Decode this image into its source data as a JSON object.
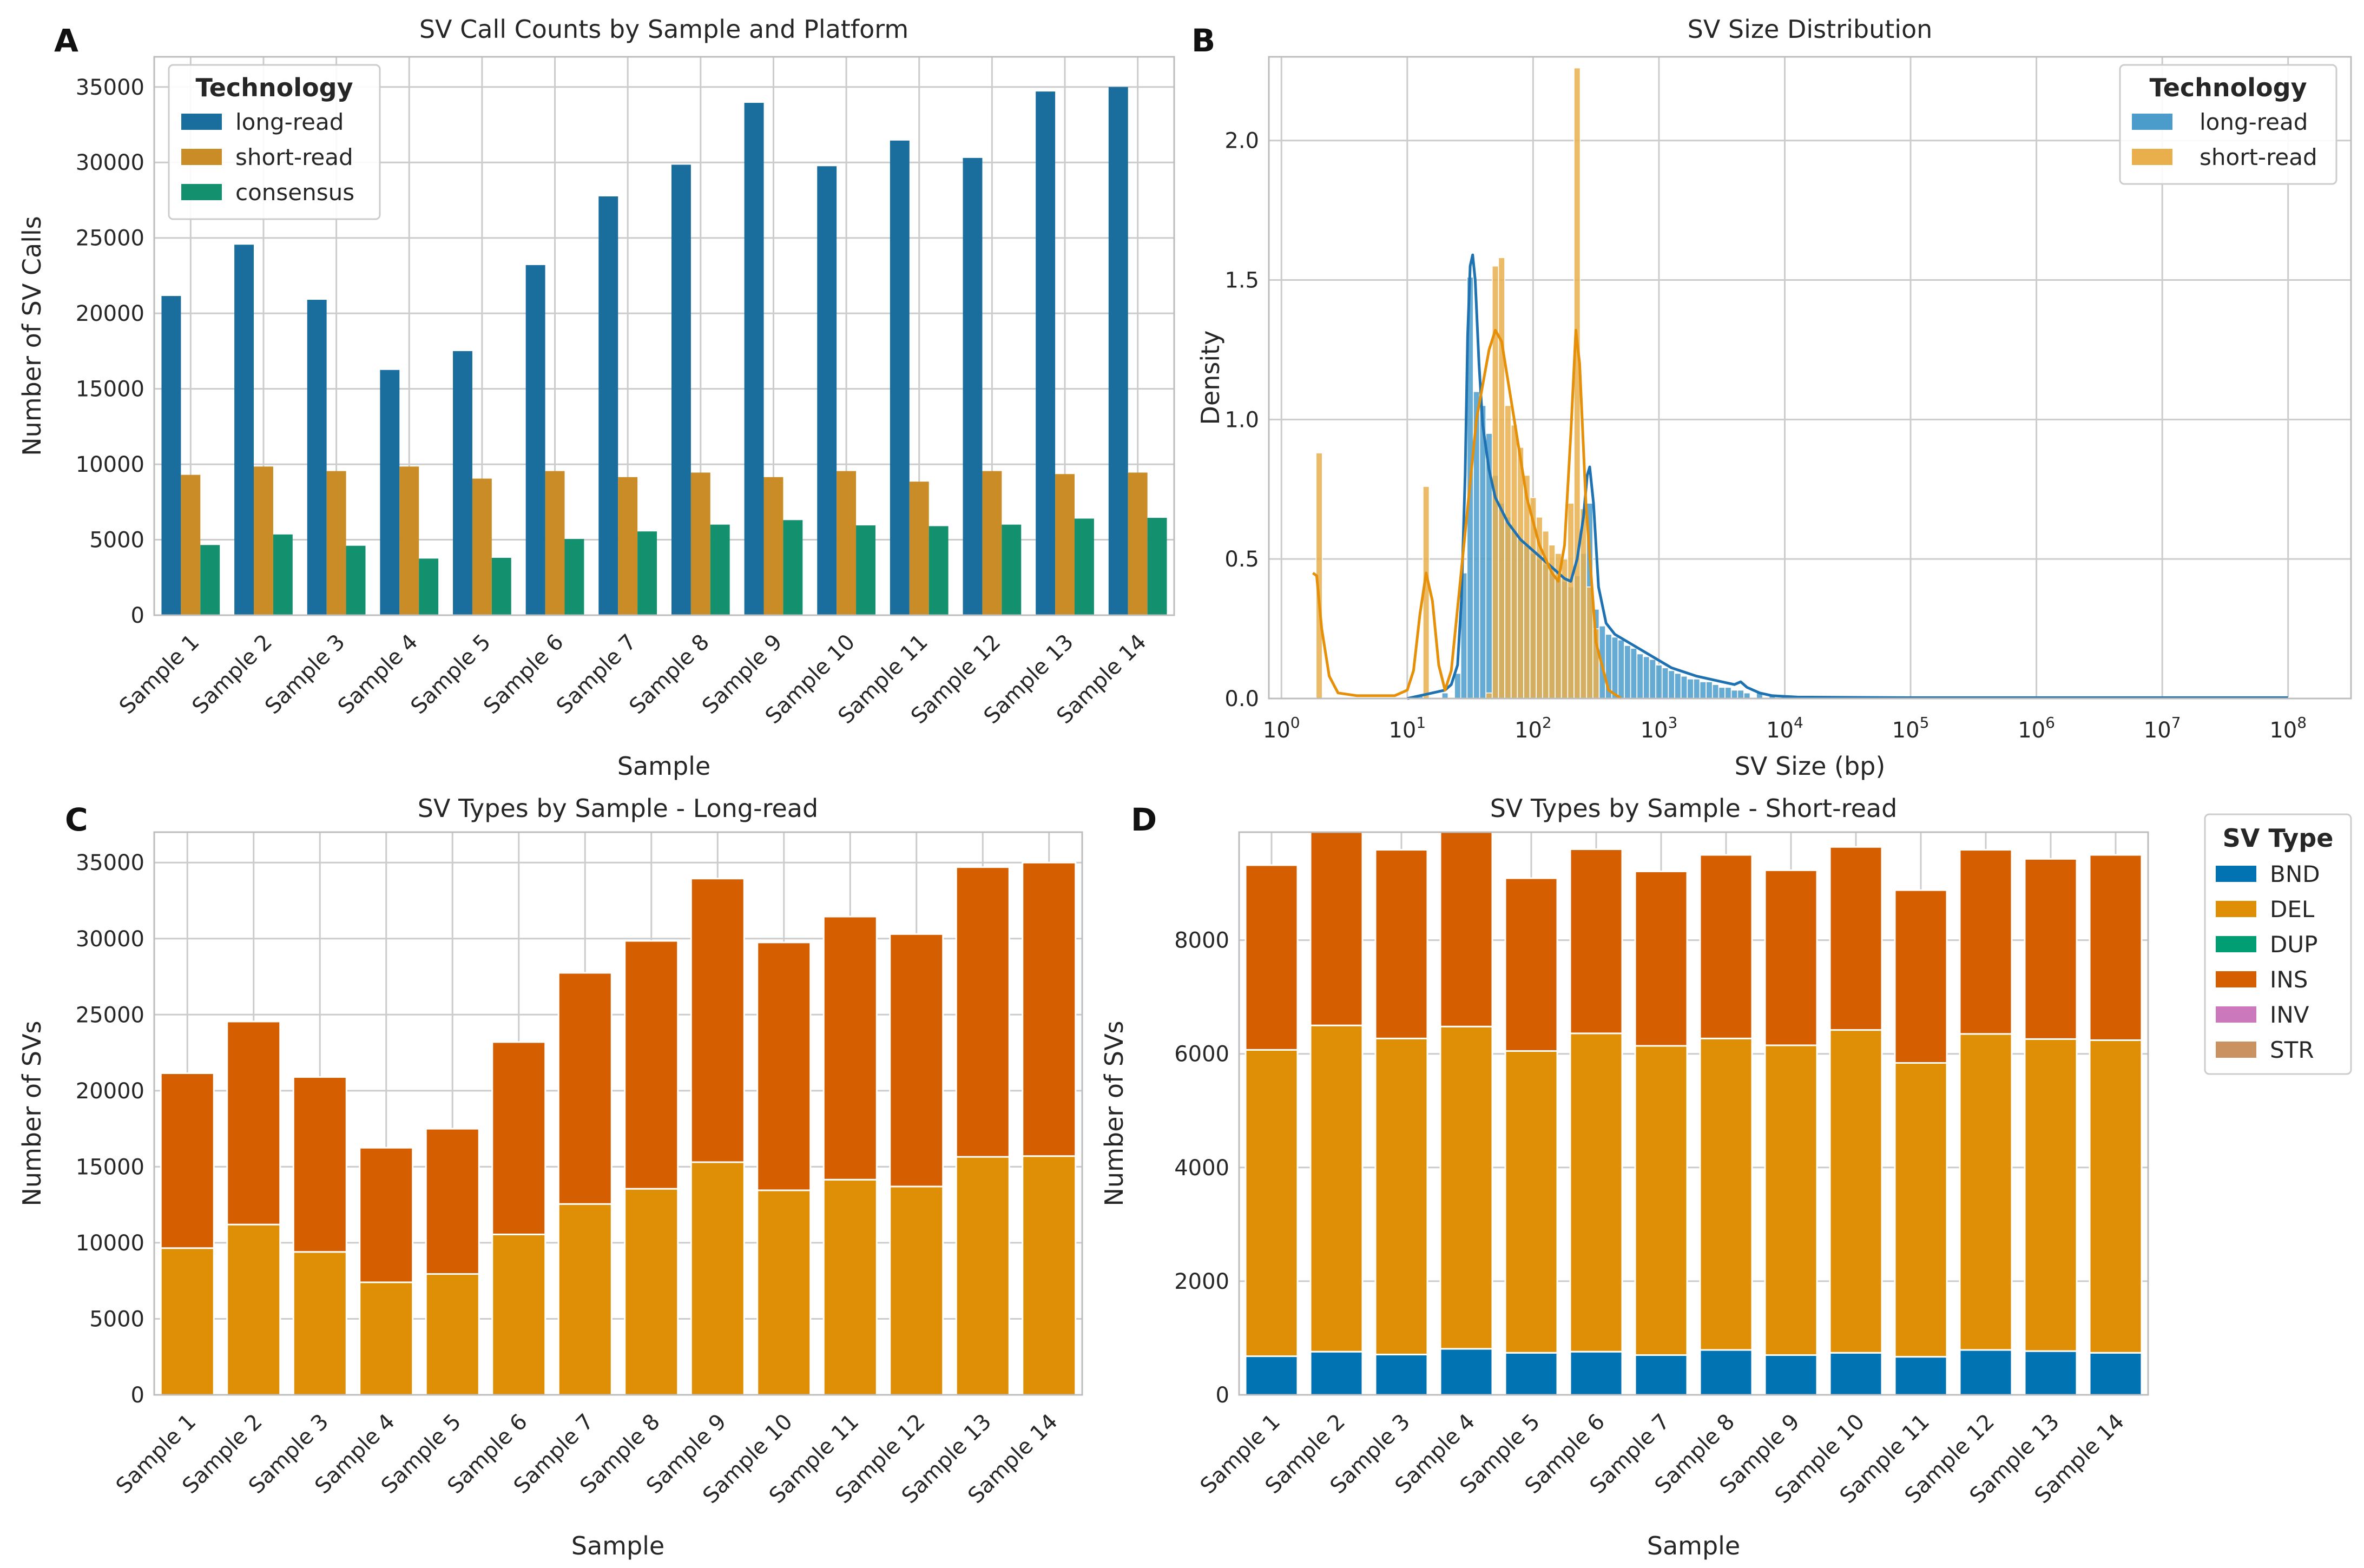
{
  "samples": [
    "Sample 1",
    "Sample 2",
    "Sample 3",
    "Sample 4",
    "Sample 5",
    "Sample 6",
    "Sample 7",
    "Sample 8",
    "Sample 9",
    "Sample 10",
    "Sample 11",
    "Sample 12",
    "Sample 13",
    "Sample 14"
  ],
  "colors": {
    "long_read": "#1a6e9e",
    "short_read": "#c98c26",
    "consensus": "#13906e",
    "hist_long": "#4b9ccb",
    "hist_short": "#e8af4c",
    "kde_long": "#1f72b1",
    "kde_short": "#e59008",
    "BND": "#0173b2",
    "DEL": "#de8f05",
    "DUP": "#029e73",
    "INS": "#d55e00",
    "INV": "#cc78bc",
    "STR": "#ca9161"
  },
  "chart_data": [
    {
      "panel": "A",
      "type": "bar",
      "title": "SV Call Counts by Sample and Platform",
      "xlabel": "Sample",
      "ylabel": "Number of SV Calls",
      "ylim": [
        0,
        37000
      ],
      "yticks": [
        0,
        5000,
        10000,
        15000,
        20000,
        25000,
        30000,
        35000
      ],
      "legend": {
        "title": "Technology",
        "position": "top-left"
      },
      "series": [
        {
          "name": "long-read",
          "values": [
            21150,
            24550,
            20900,
            16250,
            17500,
            23200,
            27750,
            29850,
            33950,
            29750,
            31450,
            30300,
            34700,
            35000
          ]
        },
        {
          "name": "short-read",
          "values": [
            9300,
            9850,
            9550,
            9850,
            9050,
            9550,
            9150,
            9450,
            9150,
            9550,
            8850,
            9550,
            9350,
            9450
          ]
        },
        {
          "name": "consensus",
          "values": [
            4650,
            5350,
            4600,
            3750,
            3800,
            5050,
            5550,
            6000,
            6300,
            5950,
            5900,
            6000,
            6400,
            6450
          ]
        }
      ]
    },
    {
      "panel": "B",
      "type": "histogram",
      "title": "SV Size Distribution",
      "xlabel": "SV Size (bp)",
      "ylabel": "Density",
      "xscale": "log10",
      "xlim_log10": [
        -0.1,
        8.5
      ],
      "ylim": [
        0,
        2.3
      ],
      "yticks": [
        0.0,
        0.5,
        1.0,
        1.5,
        2.0
      ],
      "ytick_labels": [
        "0.0",
        "0.5",
        "1.0",
        "1.5",
        "2.0"
      ],
      "xticks": [
        {
          "base": "10",
          "exp": "0",
          "log10": 0
        },
        {
          "base": "10",
          "exp": "1",
          "log10": 1
        },
        {
          "base": "10",
          "exp": "2",
          "log10": 2
        },
        {
          "base": "10",
          "exp": "3",
          "log10": 3
        },
        {
          "base": "10",
          "exp": "4",
          "log10": 4
        },
        {
          "base": "10",
          "exp": "5",
          "log10": 5
        },
        {
          "base": "10",
          "exp": "6",
          "log10": 6
        },
        {
          "base": "10",
          "exp": "7",
          "log10": 7
        },
        {
          "base": "10",
          "exp": "8",
          "log10": 8
        }
      ],
      "legend": {
        "title": "Technology",
        "position": "top-right",
        "entries": [
          "long-read",
          "short-read"
        ]
      },
      "series": [
        {
          "name": "long-read",
          "bins_log10": [
            [
              1.1,
              0.01
            ],
            [
              1.3,
              0.02
            ],
            [
              1.4,
              0.09
            ],
            [
              1.45,
              0.45
            ],
            [
              1.5,
              1.51
            ],
            [
              1.55,
              1.1
            ],
            [
              1.6,
              1.05
            ],
            [
              1.65,
              0.95
            ],
            [
              1.7,
              0.8
            ],
            [
              1.75,
              0.7
            ],
            [
              1.8,
              0.65
            ],
            [
              1.85,
              0.6
            ],
            [
              1.9,
              0.57
            ],
            [
              1.95,
              0.55
            ],
            [
              2.0,
              0.52
            ],
            [
              2.05,
              0.5
            ],
            [
              2.1,
              0.48
            ],
            [
              2.15,
              0.45
            ],
            [
              2.2,
              0.43
            ],
            [
              2.25,
              0.42
            ],
            [
              2.3,
              0.4
            ],
            [
              2.35,
              0.44
            ],
            [
              2.4,
              0.52
            ],
            [
              2.45,
              0.7
            ],
            [
              2.5,
              0.32
            ],
            [
              2.55,
              0.26
            ],
            [
              2.6,
              0.23
            ],
            [
              2.65,
              0.22
            ],
            [
              2.7,
              0.21
            ],
            [
              2.75,
              0.19
            ],
            [
              2.8,
              0.18
            ],
            [
              2.85,
              0.16
            ],
            [
              2.9,
              0.15
            ],
            [
              2.95,
              0.14
            ],
            [
              3.0,
              0.12
            ],
            [
              3.05,
              0.11
            ],
            [
              3.1,
              0.1
            ],
            [
              3.15,
              0.09
            ],
            [
              3.2,
              0.08
            ],
            [
              3.25,
              0.07
            ],
            [
              3.3,
              0.07
            ],
            [
              3.35,
              0.06
            ],
            [
              3.4,
              0.06
            ],
            [
              3.45,
              0.05
            ],
            [
              3.5,
              0.04
            ],
            [
              3.55,
              0.04
            ],
            [
              3.6,
              0.03
            ],
            [
              3.65,
              0.03
            ],
            [
              3.7,
              0.02
            ],
            [
              3.8,
              0.02
            ],
            [
              3.9,
              0.01
            ],
            [
              4.0,
              0.01
            ],
            [
              4.3,
              0.005
            ],
            [
              5.0,
              0.004
            ],
            [
              6.0,
              0.004
            ],
            [
              7.0,
              0.004
            ],
            [
              8.0,
              0.004
            ]
          ],
          "kde_log10": [
            [
              1.0,
              0.0
            ],
            [
              1.1,
              0.01
            ],
            [
              1.2,
              0.02
            ],
            [
              1.3,
              0.03
            ],
            [
              1.35,
              0.05
            ],
            [
              1.4,
              0.12
            ],
            [
              1.43,
              0.35
            ],
            [
              1.46,
              0.8
            ],
            [
              1.48,
              1.3
            ],
            [
              1.5,
              1.55
            ],
            [
              1.52,
              1.59
            ],
            [
              1.54,
              1.5
            ],
            [
              1.57,
              1.2
            ],
            [
              1.6,
              0.98
            ],
            [
              1.65,
              0.82
            ],
            [
              1.7,
              0.72
            ],
            [
              1.8,
              0.63
            ],
            [
              1.9,
              0.57
            ],
            [
              2.0,
              0.53
            ],
            [
              2.1,
              0.49
            ],
            [
              2.2,
              0.45
            ],
            [
              2.25,
              0.43
            ],
            [
              2.3,
              0.42
            ],
            [
              2.35,
              0.5
            ],
            [
              2.4,
              0.65
            ],
            [
              2.43,
              0.8
            ],
            [
              2.45,
              0.83
            ],
            [
              2.48,
              0.7
            ],
            [
              2.52,
              0.4
            ],
            [
              2.58,
              0.27
            ],
            [
              2.65,
              0.23
            ],
            [
              2.8,
              0.19
            ],
            [
              2.95,
              0.15
            ],
            [
              3.1,
              0.11
            ],
            [
              3.3,
              0.08
            ],
            [
              3.5,
              0.06
            ],
            [
              3.6,
              0.05
            ],
            [
              3.65,
              0.06
            ],
            [
              3.7,
              0.04
            ],
            [
              3.8,
              0.02
            ],
            [
              3.9,
              0.01
            ],
            [
              4.1,
              0.005
            ],
            [
              5.0,
              0.003
            ],
            [
              8.0,
              0.003
            ]
          ]
        },
        {
          "name": "short-read",
          "bins_log10": [
            [
              0.3,
              0.88
            ],
            [
              1.15,
              0.76
            ],
            [
              1.65,
              0.02
            ],
            [
              1.7,
              1.55
            ],
            [
              1.75,
              1.58
            ],
            [
              1.8,
              1.05
            ],
            [
              1.85,
              0.98
            ],
            [
              1.9,
              0.9
            ],
            [
              1.95,
              0.8
            ],
            [
              2.0,
              0.72
            ],
            [
              2.05,
              0.65
            ],
            [
              2.1,
              0.6
            ],
            [
              2.15,
              0.55
            ],
            [
              2.2,
              0.52
            ],
            [
              2.25,
              0.5
            ],
            [
              2.3,
              0.7
            ],
            [
              2.35,
              2.26
            ],
            [
              2.4,
              0.68
            ],
            [
              2.45,
              0.4
            ],
            [
              2.5,
              0.25
            ]
          ],
          "kde_log10": [
            [
              0.25,
              0.45
            ],
            [
              0.28,
              0.44
            ],
            [
              0.32,
              0.25
            ],
            [
              0.38,
              0.08
            ],
            [
              0.45,
              0.02
            ],
            [
              0.6,
              0.01
            ],
            [
              0.9,
              0.01
            ],
            [
              1.0,
              0.03
            ],
            [
              1.05,
              0.1
            ],
            [
              1.1,
              0.3
            ],
            [
              1.15,
              0.45
            ],
            [
              1.2,
              0.35
            ],
            [
              1.25,
              0.12
            ],
            [
              1.3,
              0.03
            ],
            [
              1.35,
              0.1
            ],
            [
              1.45,
              0.55
            ],
            [
              1.55,
              1.0
            ],
            [
              1.65,
              1.25
            ],
            [
              1.7,
              1.32
            ],
            [
              1.75,
              1.28
            ],
            [
              1.85,
              1.0
            ],
            [
              1.95,
              0.72
            ],
            [
              2.05,
              0.55
            ],
            [
              2.15,
              0.45
            ],
            [
              2.2,
              0.42
            ],
            [
              2.25,
              0.55
            ],
            [
              2.3,
              0.95
            ],
            [
              2.34,
              1.32
            ],
            [
              2.37,
              1.2
            ],
            [
              2.42,
              0.7
            ],
            [
              2.5,
              0.2
            ],
            [
              2.6,
              0.03
            ],
            [
              2.7,
              0.0
            ]
          ]
        }
      ]
    },
    {
      "panel": "C",
      "type": "stacked_bar",
      "title": "SV Types by Sample - Long-read",
      "xlabel": "Sample",
      "ylabel": "Number of SVs",
      "ylim": [
        0,
        37000
      ],
      "yticks": [
        0,
        5000,
        10000,
        15000,
        20000,
        25000,
        30000,
        35000
      ],
      "series": [
        {
          "name": "DEL",
          "values": [
            9650,
            11200,
            9400,
            7400,
            7950,
            10550,
            12550,
            13550,
            15300,
            13450,
            14150,
            13700,
            15650,
            15700
          ]
        },
        {
          "name": "INS",
          "values": [
            11500,
            13350,
            11500,
            8850,
            9550,
            12650,
            15200,
            16300,
            18650,
            16300,
            17300,
            16600,
            19050,
            19300
          ]
        }
      ]
    },
    {
      "panel": "D",
      "type": "stacked_bar",
      "title": "SV Types by Sample - Short-read",
      "xlabel": "Sample",
      "ylabel": "Number of SVs",
      "ylim": [
        0,
        9900
      ],
      "yticks": [
        0,
        2000,
        4000,
        6000,
        8000
      ],
      "legend": {
        "title": "SV Type",
        "position": "outside-right",
        "entries": [
          "BND",
          "DEL",
          "DUP",
          "INS",
          "INV",
          "STR"
        ]
      },
      "series": [
        {
          "name": "BND",
          "values": [
            680,
            760,
            710,
            810,
            740,
            760,
            700,
            790,
            700,
            740,
            670,
            790,
            770,
            740
          ]
        },
        {
          "name": "DEL",
          "values": [
            5390,
            5740,
            5560,
            5670,
            5310,
            5600,
            5440,
            5480,
            5450,
            5680,
            5170,
            5560,
            5490,
            5500
          ]
        },
        {
          "name": "INS",
          "values": [
            3250,
            3400,
            3320,
            3420,
            3040,
            3240,
            3070,
            3230,
            3080,
            3220,
            3040,
            3240,
            3170,
            3260
          ]
        }
      ]
    }
  ]
}
